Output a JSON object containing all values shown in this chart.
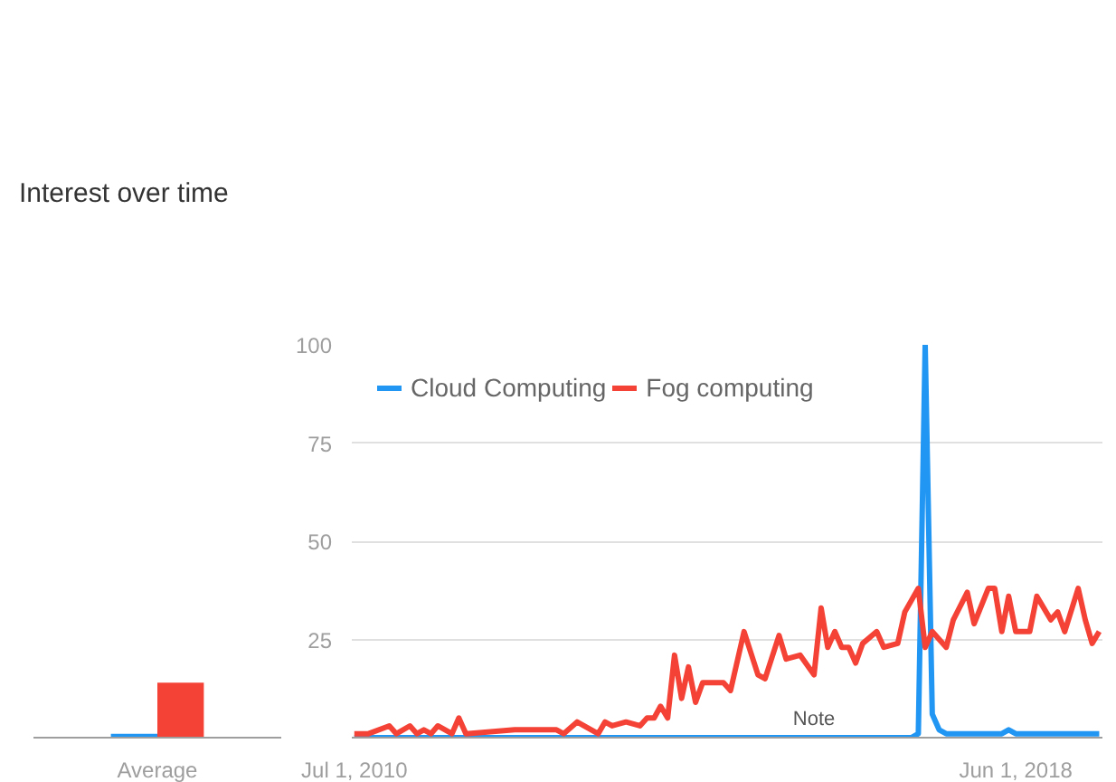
{
  "chart_data": [
    {
      "type": "line",
      "legend": "top left",
      "grid": "y",
      "xlim": [
        "2010-06-20",
        "2019-06-15"
      ],
      "xticks": [
        {
          "value": "2010-07-01",
          "label": "Jul 1, 2010"
        },
        {
          "value": "2018-06-01",
          "label": "Jun 1, 2018"
        }
      ],
      "ylim": [
        0,
        100
      ],
      "yticks": [
        25,
        50,
        75,
        100
      ],
      "annotations": [
        {
          "text": "Note",
          "x": "2016-01",
          "y": 0
        }
      ],
      "series": [
        {
          "name": "Cloud Computing",
          "color": "#2196f3",
          "x": [
            "2010-07",
            "2017-03",
            "2017-04",
            "2017-05",
            "2017-06",
            "2017-07",
            "2017-08",
            "2018-04",
            "2018-05",
            "2018-06",
            "2019-06"
          ],
          "values": [
            0,
            0,
            1,
            100,
            6,
            2,
            1,
            1,
            2,
            1,
            1
          ]
        },
        {
          "name": "Fog computing",
          "color": "#f44336",
          "x": [
            "2010-07",
            "2010-09",
            "2010-12",
            "2011-01",
            "2011-03",
            "2011-04",
            "2011-05",
            "2011-06",
            "2011-07",
            "2011-09",
            "2011-10",
            "2011-11",
            "2012-06",
            "2012-12",
            "2013-01",
            "2013-03",
            "2013-06",
            "2013-07",
            "2013-08",
            "2013-10",
            "2013-12",
            "2014-01",
            "2014-02",
            "2014-03",
            "2014-04",
            "2014-05",
            "2014-06",
            "2014-07",
            "2014-08",
            "2014-09",
            "2014-11",
            "2014-12",
            "2015-01",
            "2015-03",
            "2015-05",
            "2015-06",
            "2015-08",
            "2015-09",
            "2015-11",
            "2016-01",
            "2016-02",
            "2016-03",
            "2016-04",
            "2016-05",
            "2016-06",
            "2016-07",
            "2016-08",
            "2016-10",
            "2016-11",
            "2017-01",
            "2017-02",
            "2017-04",
            "2017-05",
            "2017-06",
            "2017-08",
            "2017-09",
            "2017-11",
            "2017-12",
            "2018-02",
            "2018-03",
            "2018-04",
            "2018-05",
            "2018-06",
            "2018-08",
            "2018-09",
            "2018-11",
            "2018-12",
            "2019-01",
            "2019-03",
            "2019-04",
            "2019-05",
            "2019-06"
          ],
          "values": [
            1,
            1,
            3,
            1,
            3,
            1,
            2,
            1,
            3,
            1,
            5,
            1,
            2,
            2,
            1,
            4,
            1,
            4,
            3,
            4,
            3,
            5,
            5,
            8,
            5,
            21,
            10,
            18,
            9,
            14,
            14,
            14,
            12,
            27,
            16,
            15,
            26,
            20,
            21,
            16,
            33,
            23,
            27,
            23,
            23,
            19,
            24,
            27,
            23,
            24,
            32,
            38,
            23,
            27,
            23,
            30,
            37,
            29,
            38,
            38,
            27,
            36,
            27,
            27,
            36,
            30,
            32,
            27,
            38,
            30,
            24,
            27
          ]
        }
      ]
    },
    {
      "type": "bar",
      "title": "Interest over time",
      "categories": [
        "Average"
      ],
      "ylim": [
        0,
        100
      ],
      "tick_labels": "x",
      "series": [
        {
          "color": "#2196f3",
          "values": [
            1
          ]
        },
        {
          "color": "#f44336",
          "values": [
            14
          ]
        }
      ]
    }
  ]
}
